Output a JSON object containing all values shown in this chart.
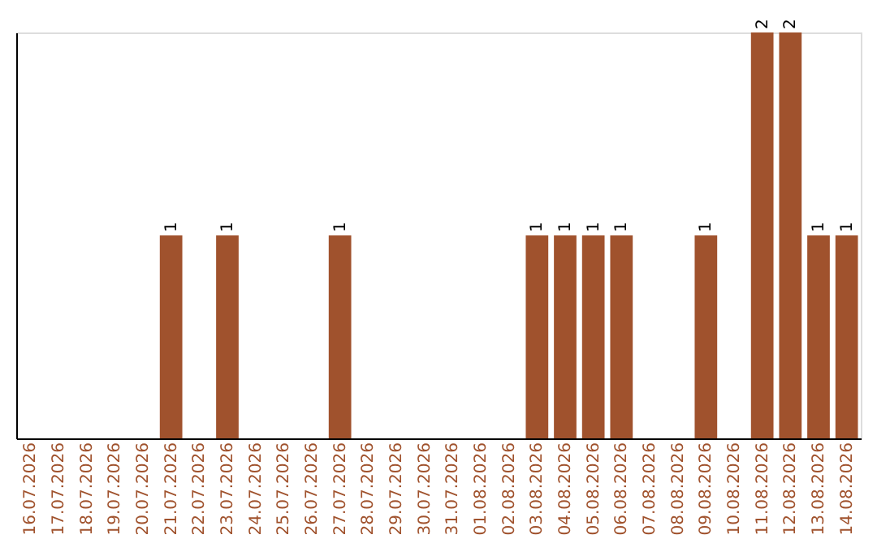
{
  "chart_data": {
    "type": "bar",
    "categories": [
      "16.07.2026",
      "17.07.2026",
      "18.07.2026",
      "19.07.2026",
      "20.07.2026",
      "21.07.2026",
      "22.07.2026",
      "23.07.2026",
      "24.07.2026",
      "25.07.2026",
      "26.07.2026",
      "27.07.2026",
      "28.07.2026",
      "29.07.2026",
      "30.07.2026",
      "31.07.2026",
      "01.08.2026",
      "02.08.2026",
      "03.08.2026",
      "04.08.2026",
      "05.08.2026",
      "06.08.2026",
      "07.08.2026",
      "08.08.2026",
      "09.08.2026",
      "10.08.2026",
      "11.08.2026",
      "12.08.2026",
      "13.08.2026",
      "14.08.2026"
    ],
    "values": [
      0,
      0,
      0,
      0,
      0,
      1,
      0,
      1,
      0,
      0,
      0,
      1,
      0,
      0,
      0,
      0,
      0,
      0,
      1,
      1,
      1,
      1,
      0,
      0,
      1,
      0,
      2,
      2,
      1,
      1
    ],
    "value_labels": [
      null,
      null,
      null,
      null,
      null,
      "1",
      null,
      "1",
      null,
      null,
      null,
      "1",
      null,
      null,
      null,
      null,
      null,
      null,
      "1",
      "1",
      "1",
      "1",
      null,
      null,
      "1",
      null,
      "2",
      "2",
      "1",
      "1"
    ],
    "color": "#a0522d",
    "tick_labels": "x"
  }
}
